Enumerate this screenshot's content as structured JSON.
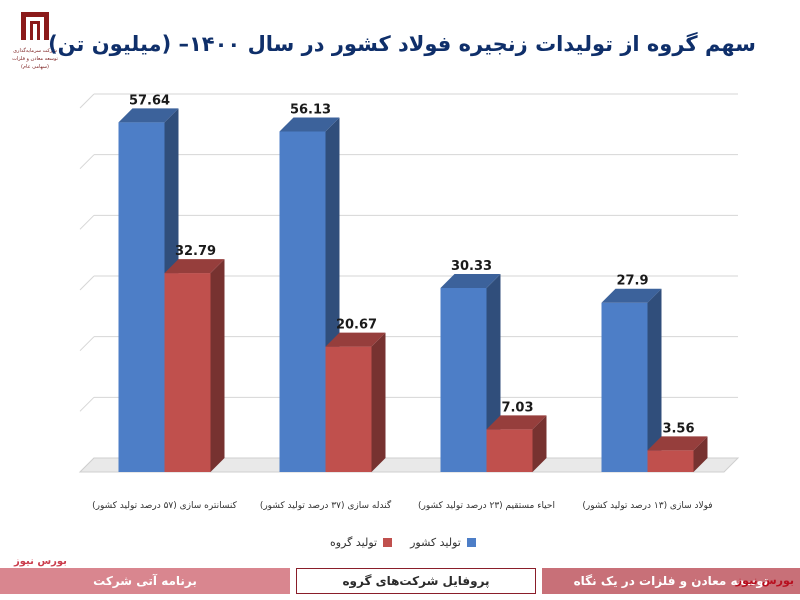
{
  "logo": {
    "line1": "شرکت سرمایه‌گذاری",
    "line2": "توسعه معادن و فلزات",
    "line3": "(سهامی عام)"
  },
  "chart_data": {
    "type": "bar",
    "title": "سهم گروه از تولیدات زنجیره فولاد کشور در سال ۱۴۰۰– (میلیون تن)",
    "categories": [
      "کنسانتره سازی (۵۷ درصد تولید کشور)",
      "گندله سازی (۳۷ درصد تولید کشور)",
      "احیاء مستقیم (۲۳ درصد تولید کشور)",
      "فولاد سازی (۱۳ درصد تولید کشور)"
    ],
    "series": [
      {
        "name": "تولید کشور",
        "values": [
          57.64,
          56.13,
          30.33,
          27.9
        ],
        "labels": [
          "57.64",
          "56.13",
          "30.33",
          "27.9"
        ],
        "color": "#4d7ec7"
      },
      {
        "name": "تولید گروه",
        "values": [
          32.79,
          20.67,
          7.03,
          3.56
        ],
        "labels": [
          "32.79",
          "20.67",
          "7.03",
          "3.56"
        ],
        "color": "#c0504d"
      }
    ],
    "ylim": [
      0,
      60
    ],
    "grid": true,
    "legend": "bottom-center",
    "three_d": true
  },
  "footer": {
    "tab_left": "برنامه آتی شرکت",
    "tab_mid": "پروفایل شرکت‌های گروه",
    "tab_right": "توسعه معادن و فلزات در یک نگاه"
  },
  "watermark": {
    "bottom_right": "بورس نیوز",
    "left": "بورس نیوز"
  }
}
